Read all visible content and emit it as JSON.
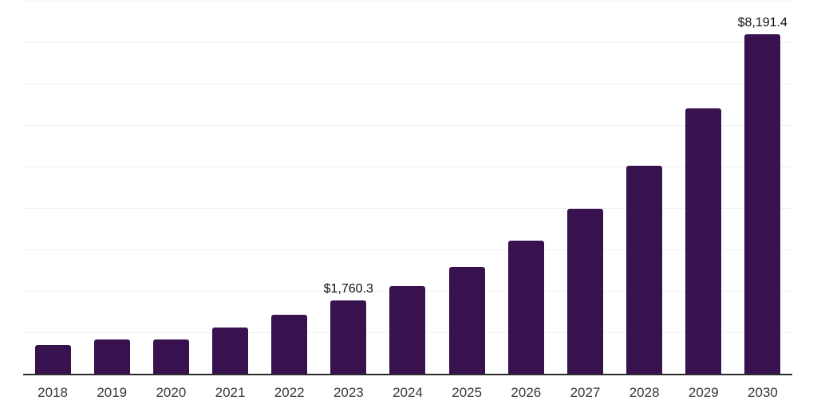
{
  "chart_data": {
    "type": "bar",
    "categories": [
      "2018",
      "2019",
      "2020",
      "2021",
      "2022",
      "2023",
      "2024",
      "2025",
      "2026",
      "2027",
      "2028",
      "2029",
      "2030"
    ],
    "values": [
      690,
      830,
      825,
      1115,
      1425,
      1760.3,
      2120,
      2580,
      3205,
      3985,
      5020,
      6410,
      8191.4
    ],
    "data_labels": [
      null,
      null,
      null,
      null,
      null,
      "$1,760.3",
      null,
      null,
      null,
      null,
      null,
      null,
      "$8,191.4"
    ],
    "title": "",
    "xlabel": "",
    "ylabel": "",
    "ylim": [
      0,
      9000
    ],
    "gridline_step": 1000,
    "grid": "horizontal-only",
    "legend": "none",
    "colors": {
      "bar": "#38114F",
      "gridline": "#f0f0f0",
      "axis_line": "#2b2b2b",
      "tick_label": "#3a3a3a",
      "data_label": "#111111"
    }
  }
}
